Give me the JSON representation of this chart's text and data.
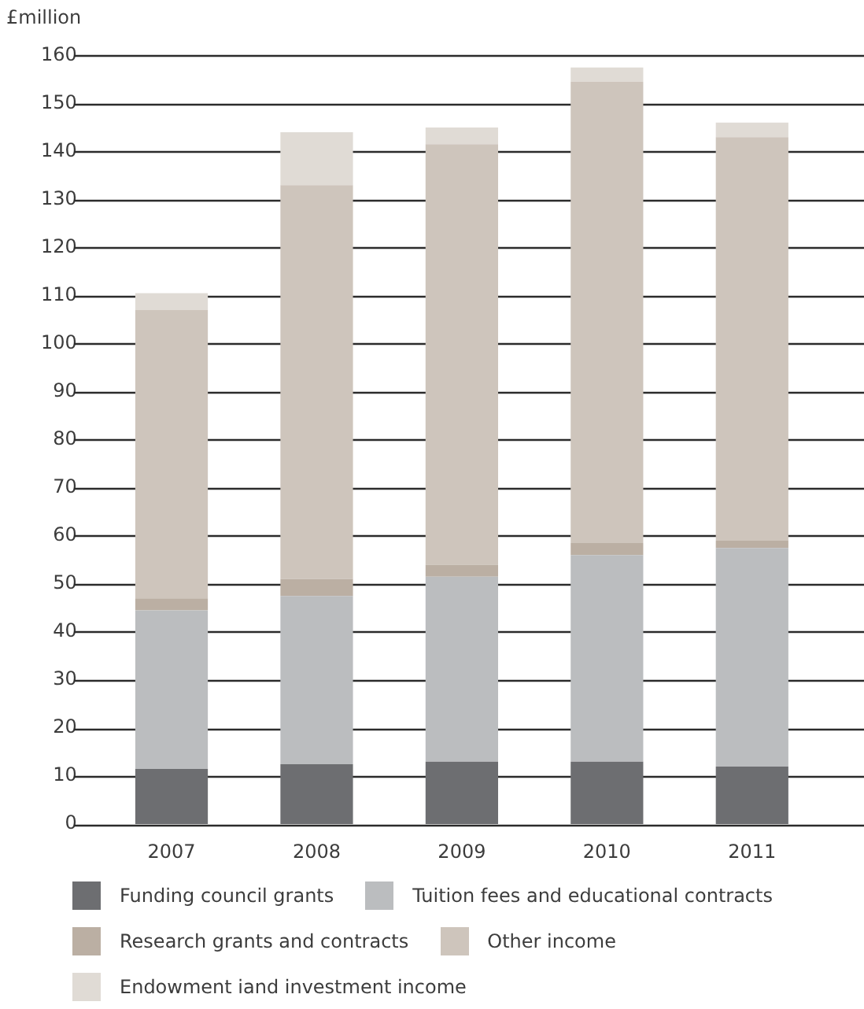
{
  "chart_data": {
    "type": "bar",
    "ylabel": "£million",
    "categories": [
      "2007",
      "2008",
      "2009",
      "2010",
      "2011"
    ],
    "stacked": true,
    "series": [
      {
        "name": "Funding council grants",
        "color": "#6d6e71",
        "values": [
          11.5,
          12.5,
          13,
          13,
          12
        ]
      },
      {
        "name": "Tuition fees and educational contracts",
        "color": "#bbbdbf",
        "values": [
          33,
          35,
          38.5,
          43,
          45.5
        ]
      },
      {
        "name": "Research grants and contracts",
        "color": "#bbafa3",
        "values": [
          2.5,
          3.5,
          2.5,
          2.5,
          1.5
        ]
      },
      {
        "name": "Other income",
        "color": "#cec5bc",
        "values": [
          60,
          82,
          87.5,
          96,
          84
        ]
      },
      {
        "name": "Endowment iand investment income",
        "color": "#e0dbd5",
        "values": [
          3.5,
          11,
          3.5,
          3,
          3
        ]
      }
    ],
    "ylim": [
      0,
      160
    ],
    "yticks": [
      0,
      10,
      20,
      30,
      40,
      50,
      60,
      70,
      80,
      90,
      100,
      110,
      120,
      130,
      140,
      150,
      160
    ],
    "grid": "y",
    "legend": "bottom"
  }
}
